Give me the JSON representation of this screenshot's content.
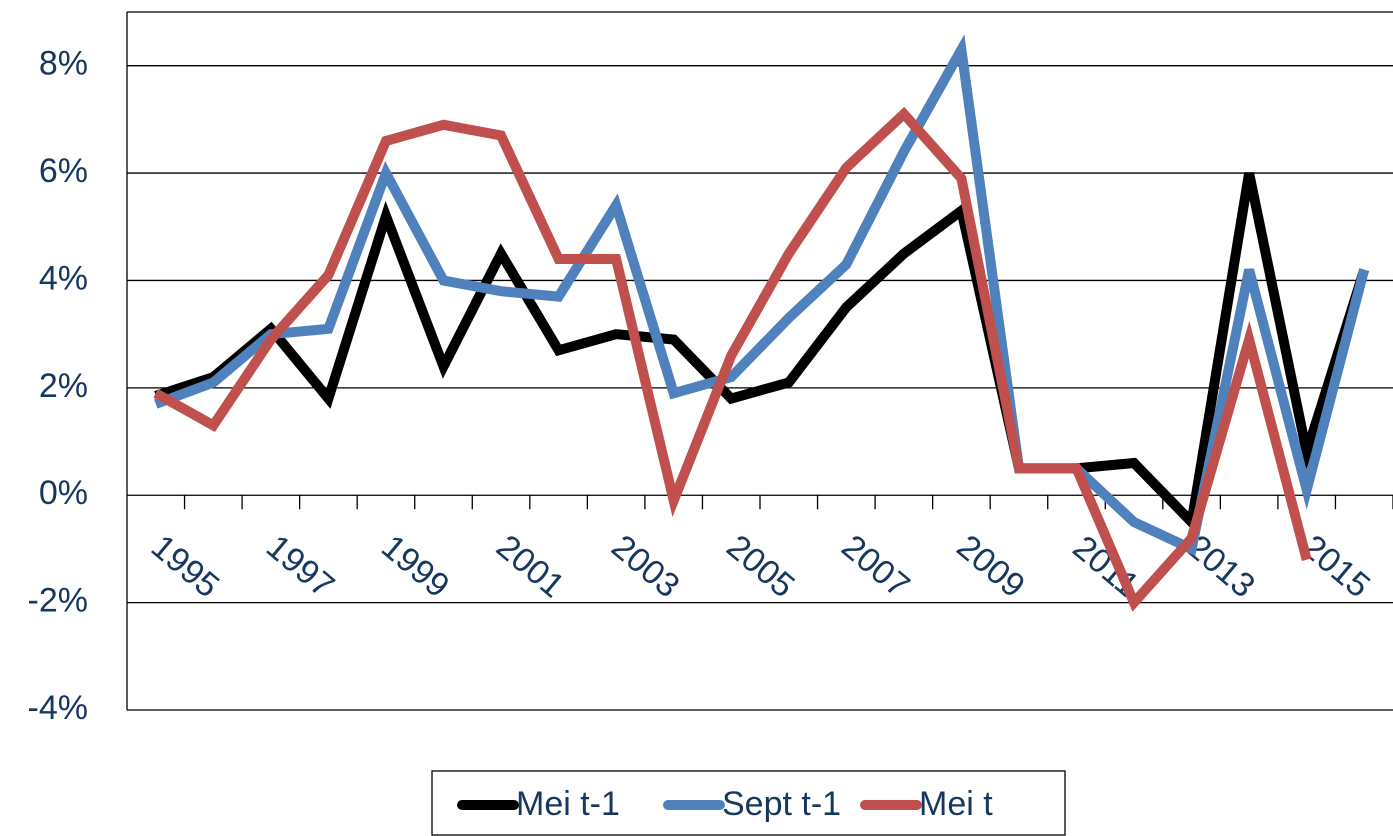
{
  "chart_data": {
    "type": "line",
    "categories": [
      "1995",
      null,
      "1997",
      null,
      "1999",
      null,
      "2001",
      null,
      "2003",
      null,
      "2005",
      null,
      "2007",
      null,
      "2009",
      null,
      "2011",
      null,
      "2013",
      null,
      "2015",
      null
    ],
    "series": [
      {
        "name": "Mei t-1",
        "color": "#000000",
        "values": [
          1.85,
          2.2,
          3.1,
          1.8,
          5.2,
          2.4,
          4.5,
          2.7,
          3.0,
          2.9,
          1.8,
          2.1,
          3.5,
          4.5,
          5.3,
          0.5,
          0.5,
          0.6,
          -0.5,
          6.0,
          0.8,
          4.2
        ]
      },
      {
        "name": "Sept t-1",
        "color": "#4f81bd",
        "values": [
          1.7,
          2.1,
          3.0,
          3.1,
          6.0,
          4.0,
          3.8,
          3.7,
          5.4,
          1.9,
          2.2,
          3.3,
          4.3,
          6.4,
          8.3,
          0.5,
          0.5,
          -0.5,
          -1.0,
          4.2,
          0.1,
          4.2
        ]
      },
      {
        "name": "Mei t",
        "color": "#c0504d",
        "values": [
          1.9,
          1.3,
          2.9,
          4.1,
          6.6,
          6.9,
          6.7,
          4.4,
          4.4,
          -0.1,
          2.6,
          4.5,
          6.1,
          7.1,
          5.9,
          0.5,
          0.5,
          -2.0,
          -0.8,
          2.9,
          -1.2,
          null
        ]
      }
    ],
    "ylim": [
      -4,
      9
    ],
    "yticks": [
      {
        "value": -4,
        "label": "-4%"
      },
      {
        "value": -2,
        "label": "-2%"
      },
      {
        "value": 0,
        "label": "0%"
      },
      {
        "value": 2,
        "label": "2%"
      },
      {
        "value": 4,
        "label": "4%"
      },
      {
        "value": 6,
        "label": "6%"
      },
      {
        "value": 8,
        "label": "8%"
      }
    ],
    "grid": true
  }
}
